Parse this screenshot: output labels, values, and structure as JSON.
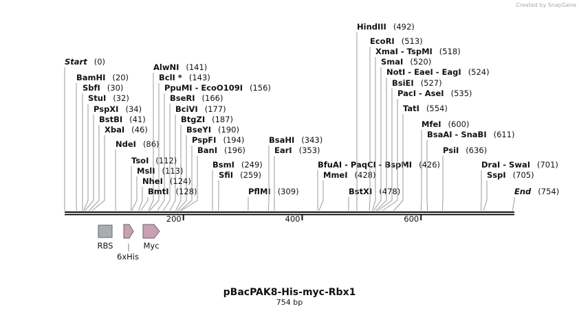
{
  "logo": "Created by SnapGene",
  "title": "pBacPAK8-His-myc-Rbx1",
  "length": "754 bp",
  "sites": [
    {
      "label": "Start",
      "position": "(0)"
    },
    {
      "label": "BamHI",
      "position": "(20)"
    },
    {
      "label": "SbfI",
      "position": "(30)"
    },
    {
      "label": "StuI",
      "position": "(32)"
    },
    {
      "label": "PspXI",
      "position": "(34)"
    },
    {
      "label": "BstBI",
      "position": "(41)"
    },
    {
      "label": "XbaI",
      "position": "(46)"
    },
    {
      "label": "NdeI",
      "position": "(86)"
    },
    {
      "label": "AlwNI",
      "position": "(141)"
    },
    {
      "label": "BclI *",
      "position": "(143)"
    },
    {
      "label": "PpuMI  -  EcoO109I",
      "position": "(156)"
    },
    {
      "label": "BseRI",
      "position": "(166)"
    },
    {
      "label": "BciVI",
      "position": "(177)"
    },
    {
      "label": "BtgZI",
      "position": "(187)"
    },
    {
      "label": "BseYI",
      "position": "(190)"
    },
    {
      "label": "PspFI",
      "position": "(194)"
    },
    {
      "label": "BanI",
      "position": "(196)"
    },
    {
      "label": "TsoI",
      "position": "(112)"
    },
    {
      "label": "MslI",
      "position": "(113)"
    },
    {
      "label": "NheI",
      "position": "(124)"
    },
    {
      "label": "BmtI",
      "position": "(128)"
    },
    {
      "label": "BsmI",
      "position": "(249)"
    },
    {
      "label": "SfiI",
      "position": "(259)"
    },
    {
      "label": "PflMI",
      "position": "(309)"
    },
    {
      "label": "BsaHI",
      "position": "(343)"
    },
    {
      "label": "EarI",
      "position": "(353)"
    },
    {
      "label": "BfuAI  -  PaqCI  -  BspMI",
      "position": "(426)"
    },
    {
      "label": "MmeI",
      "position": "(428)"
    },
    {
      "label": "BstXI",
      "position": "(478)"
    },
    {
      "label": "HindIII",
      "position": "(492)"
    },
    {
      "label": "EcoRI",
      "position": "(513)"
    },
    {
      "label": "XmaI  -  TspMI",
      "position": "(518)"
    },
    {
      "label": "SmaI",
      "position": "(520)"
    },
    {
      "label": "NotI  -  EaeI  -  EagI",
      "position": "(524)"
    },
    {
      "label": "BsiEI",
      "position": "(527)"
    },
    {
      "label": "PacI  -  AseI",
      "position": "(535)"
    },
    {
      "label": "TatI",
      "position": "(554)"
    },
    {
      "label": "MfeI",
      "position": "(600)"
    },
    {
      "label": "BsaAI  -  SnaBI",
      "position": "(611)"
    },
    {
      "label": "PsiI",
      "position": "(636)"
    },
    {
      "label": "DraI  -  SwaI",
      "position": "(701)"
    },
    {
      "label": "SspI",
      "position": "(705)"
    },
    {
      "label": "End",
      "position": "(754)"
    }
  ],
  "ruler": [
    "200",
    "400",
    "600"
  ],
  "features": [
    {
      "label": "RBS"
    },
    {
      "label": "6xHis"
    },
    {
      "label": "Myc"
    }
  ]
}
